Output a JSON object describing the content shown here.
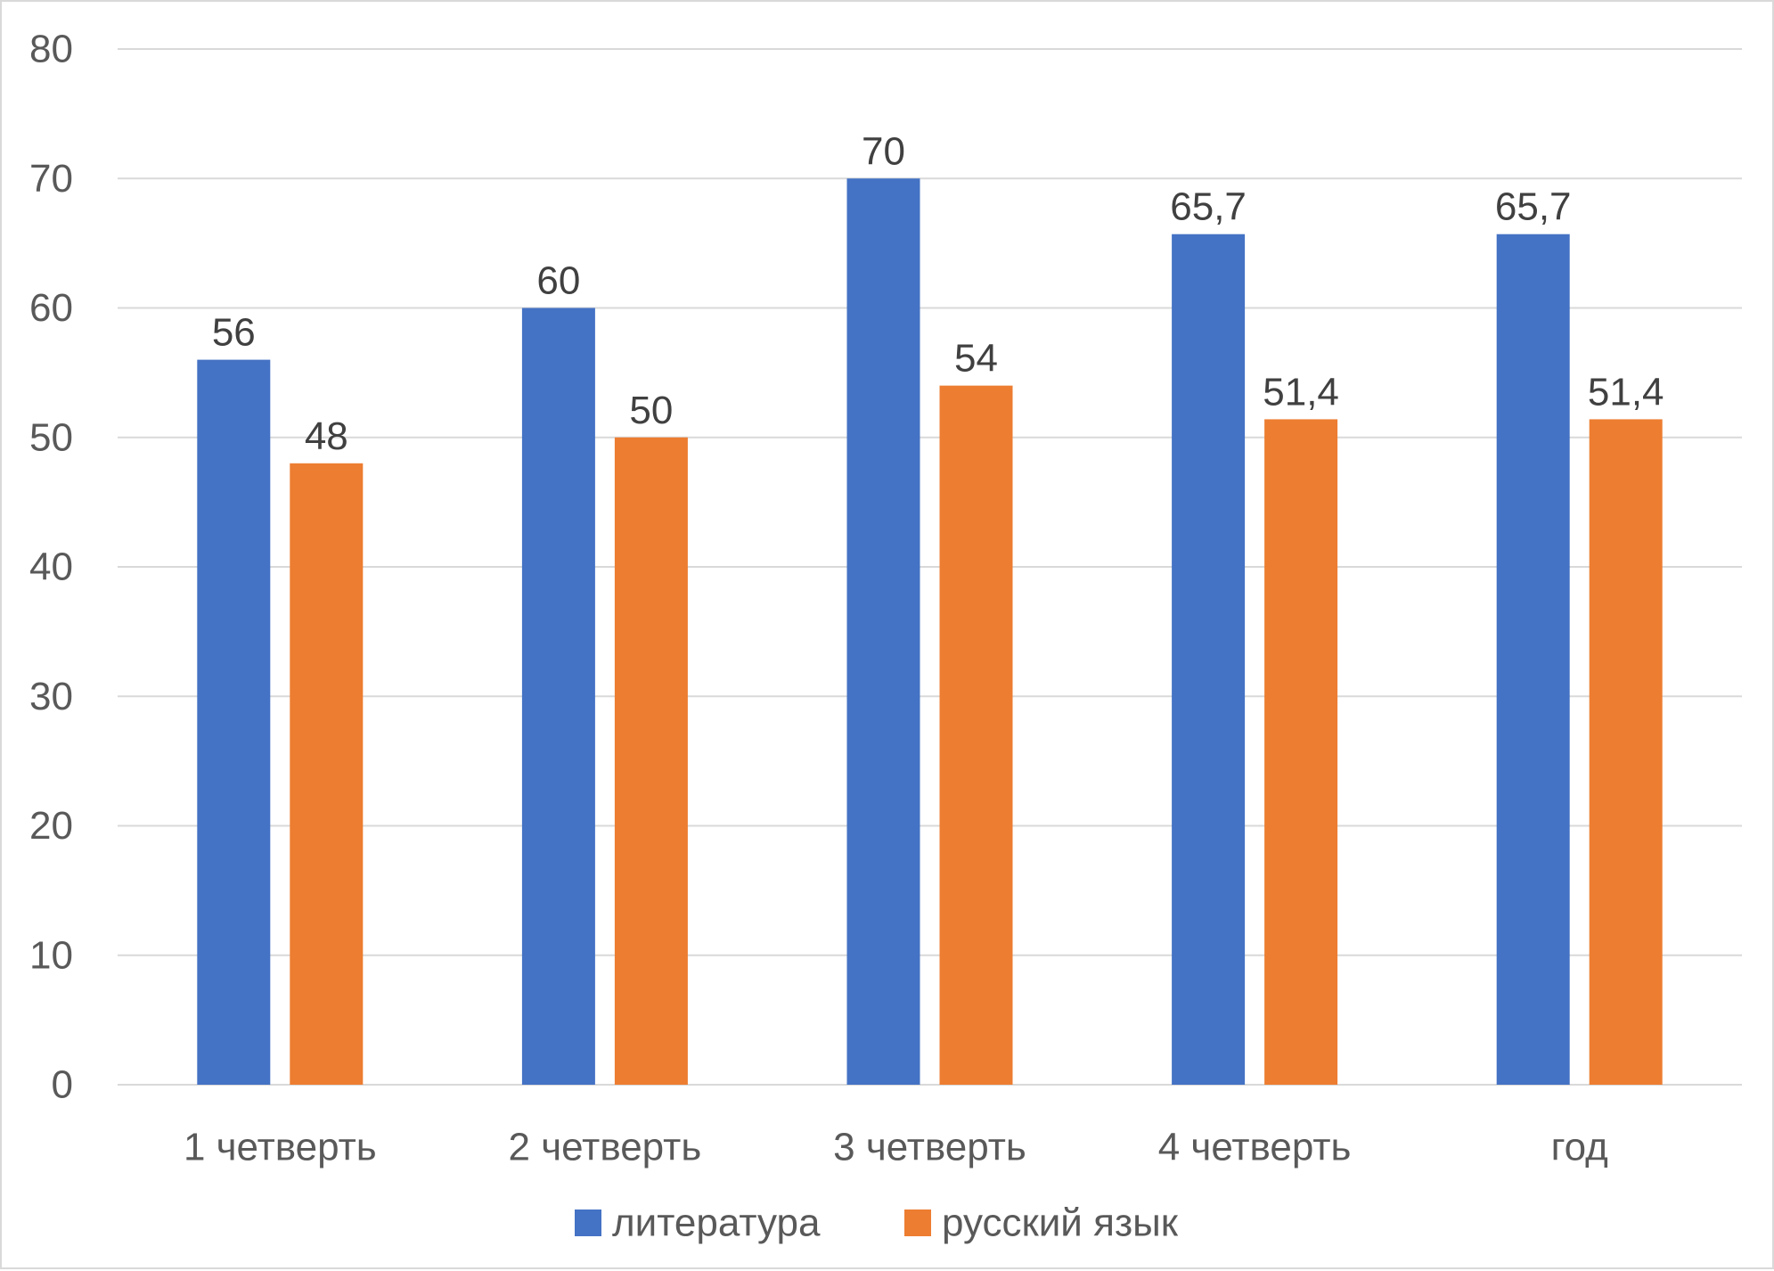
{
  "chart_data": {
    "type": "bar",
    "categories": [
      "1 четверть",
      "2 четверть",
      "3 четверть",
      "4 четверть",
      "год"
    ],
    "series": [
      {
        "name": "литература",
        "color": "#4472C4",
        "values": [
          56,
          60,
          70,
          65.7,
          65.7
        ],
        "labels": [
          "56",
          "60",
          "70",
          "65,7",
          "65,7"
        ]
      },
      {
        "name": "русский язык",
        "color": "#ED7D31",
        "values": [
          48,
          50,
          54,
          51.4,
          51.4
        ],
        "labels": [
          "48",
          "50",
          "54",
          "51,4",
          "51,4"
        ]
      }
    ],
    "ylim": [
      0,
      80
    ],
    "yticks": [
      0,
      10,
      20,
      30,
      40,
      50,
      60,
      70,
      80
    ],
    "grid": true,
    "gridColor": "#d9d9d9",
    "legend_position": "bottom",
    "title": "",
    "xlabel": "",
    "ylabel": ""
  }
}
